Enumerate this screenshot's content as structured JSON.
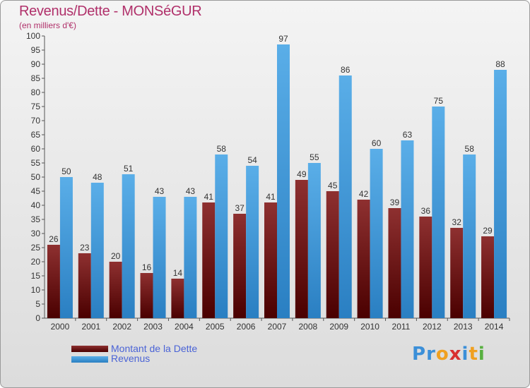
{
  "header": {
    "title": "Revenus/Dette - MONSéGUR",
    "subtitle": "(en milliers d'€)"
  },
  "legend": {
    "items": [
      {
        "label": "Montant de la Dette",
        "color": "#7a1a1a"
      },
      {
        "label": "Revenus",
        "color": "#4aa3e6"
      }
    ]
  },
  "logo": {
    "text": "Proxiti"
  },
  "chart_data": {
    "type": "bar",
    "categories": [
      "2000",
      "2001",
      "2002",
      "2003",
      "2004",
      "2005",
      "2006",
      "2007",
      "2008",
      "2009",
      "2010",
      "2011",
      "2012",
      "2013",
      "2014"
    ],
    "series": [
      {
        "name": "Montant de la Dette",
        "values": [
          26,
          23,
          20,
          16,
          14,
          41,
          37,
          41,
          49,
          45,
          42,
          39,
          36,
          32,
          29
        ],
        "color": "#7a1a1a"
      },
      {
        "name": "Revenus",
        "values": [
          50,
          48,
          51,
          43,
          43,
          58,
          54,
          97,
          55,
          86,
          60,
          63,
          75,
          58,
          88
        ],
        "color": "#4aa3e6"
      }
    ],
    "title": "Revenus/Dette - MONSéGUR",
    "ylabel": "(en milliers d'€)",
    "ylim": [
      0,
      100
    ],
    "ytick_step": 5,
    "grid": false,
    "legend_position": "bottom-left"
  }
}
